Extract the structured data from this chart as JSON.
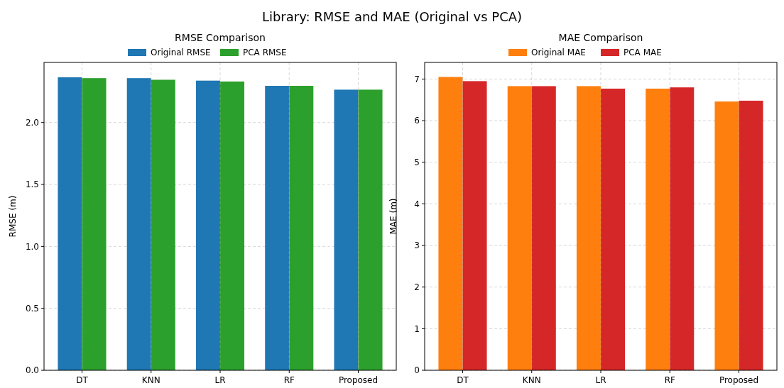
{
  "chart_data": [
    {
      "type": "bar",
      "title": "RMSE Comparison",
      "ylabel": "RMSE (m)",
      "annotations": [
        "Library: RMSE and MAE (Original vs PCA)"
      ],
      "categories": [
        "DT",
        "KNN",
        "LR",
        "RF",
        "Proposed"
      ],
      "series": [
        {
          "name": "Original RMSE",
          "color": "#1f77b4",
          "values": [
            2.365,
            2.358,
            2.338,
            2.296,
            2.265
          ]
        },
        {
          "name": "PCA RMSE",
          "color": "#2ca02c",
          "values": [
            2.358,
            2.345,
            2.331,
            2.296,
            2.265
          ]
        }
      ],
      "ylim": [
        0,
        2.485
      ],
      "yticks": [
        {
          "value": 0,
          "label": "0.0"
        },
        0.5,
        {
          "value": 1,
          "label": "1.0"
        },
        1.5,
        {
          "value": 2,
          "label": "2.0"
        }
      ],
      "grid": true,
      "legend": "top"
    },
    {
      "type": "bar",
      "title": "MAE Comparison",
      "ylabel": "MAE (m)",
      "categories": [
        "DT",
        "KNN",
        "LR",
        "RF",
        "Proposed"
      ],
      "series": [
        {
          "name": "Original MAE",
          "color": "#ff7f0e",
          "values": [
            7.05,
            6.83,
            6.83,
            6.77,
            6.46
          ]
        },
        {
          "name": "PCA MAE",
          "color": "#d62728",
          "values": [
            6.95,
            6.83,
            6.77,
            6.8,
            6.48
          ]
        }
      ],
      "ylim": [
        0,
        7.4
      ],
      "yticks": [
        0,
        1,
        2,
        3,
        4,
        5,
        6,
        7
      ],
      "grid": true,
      "legend": "top"
    }
  ]
}
